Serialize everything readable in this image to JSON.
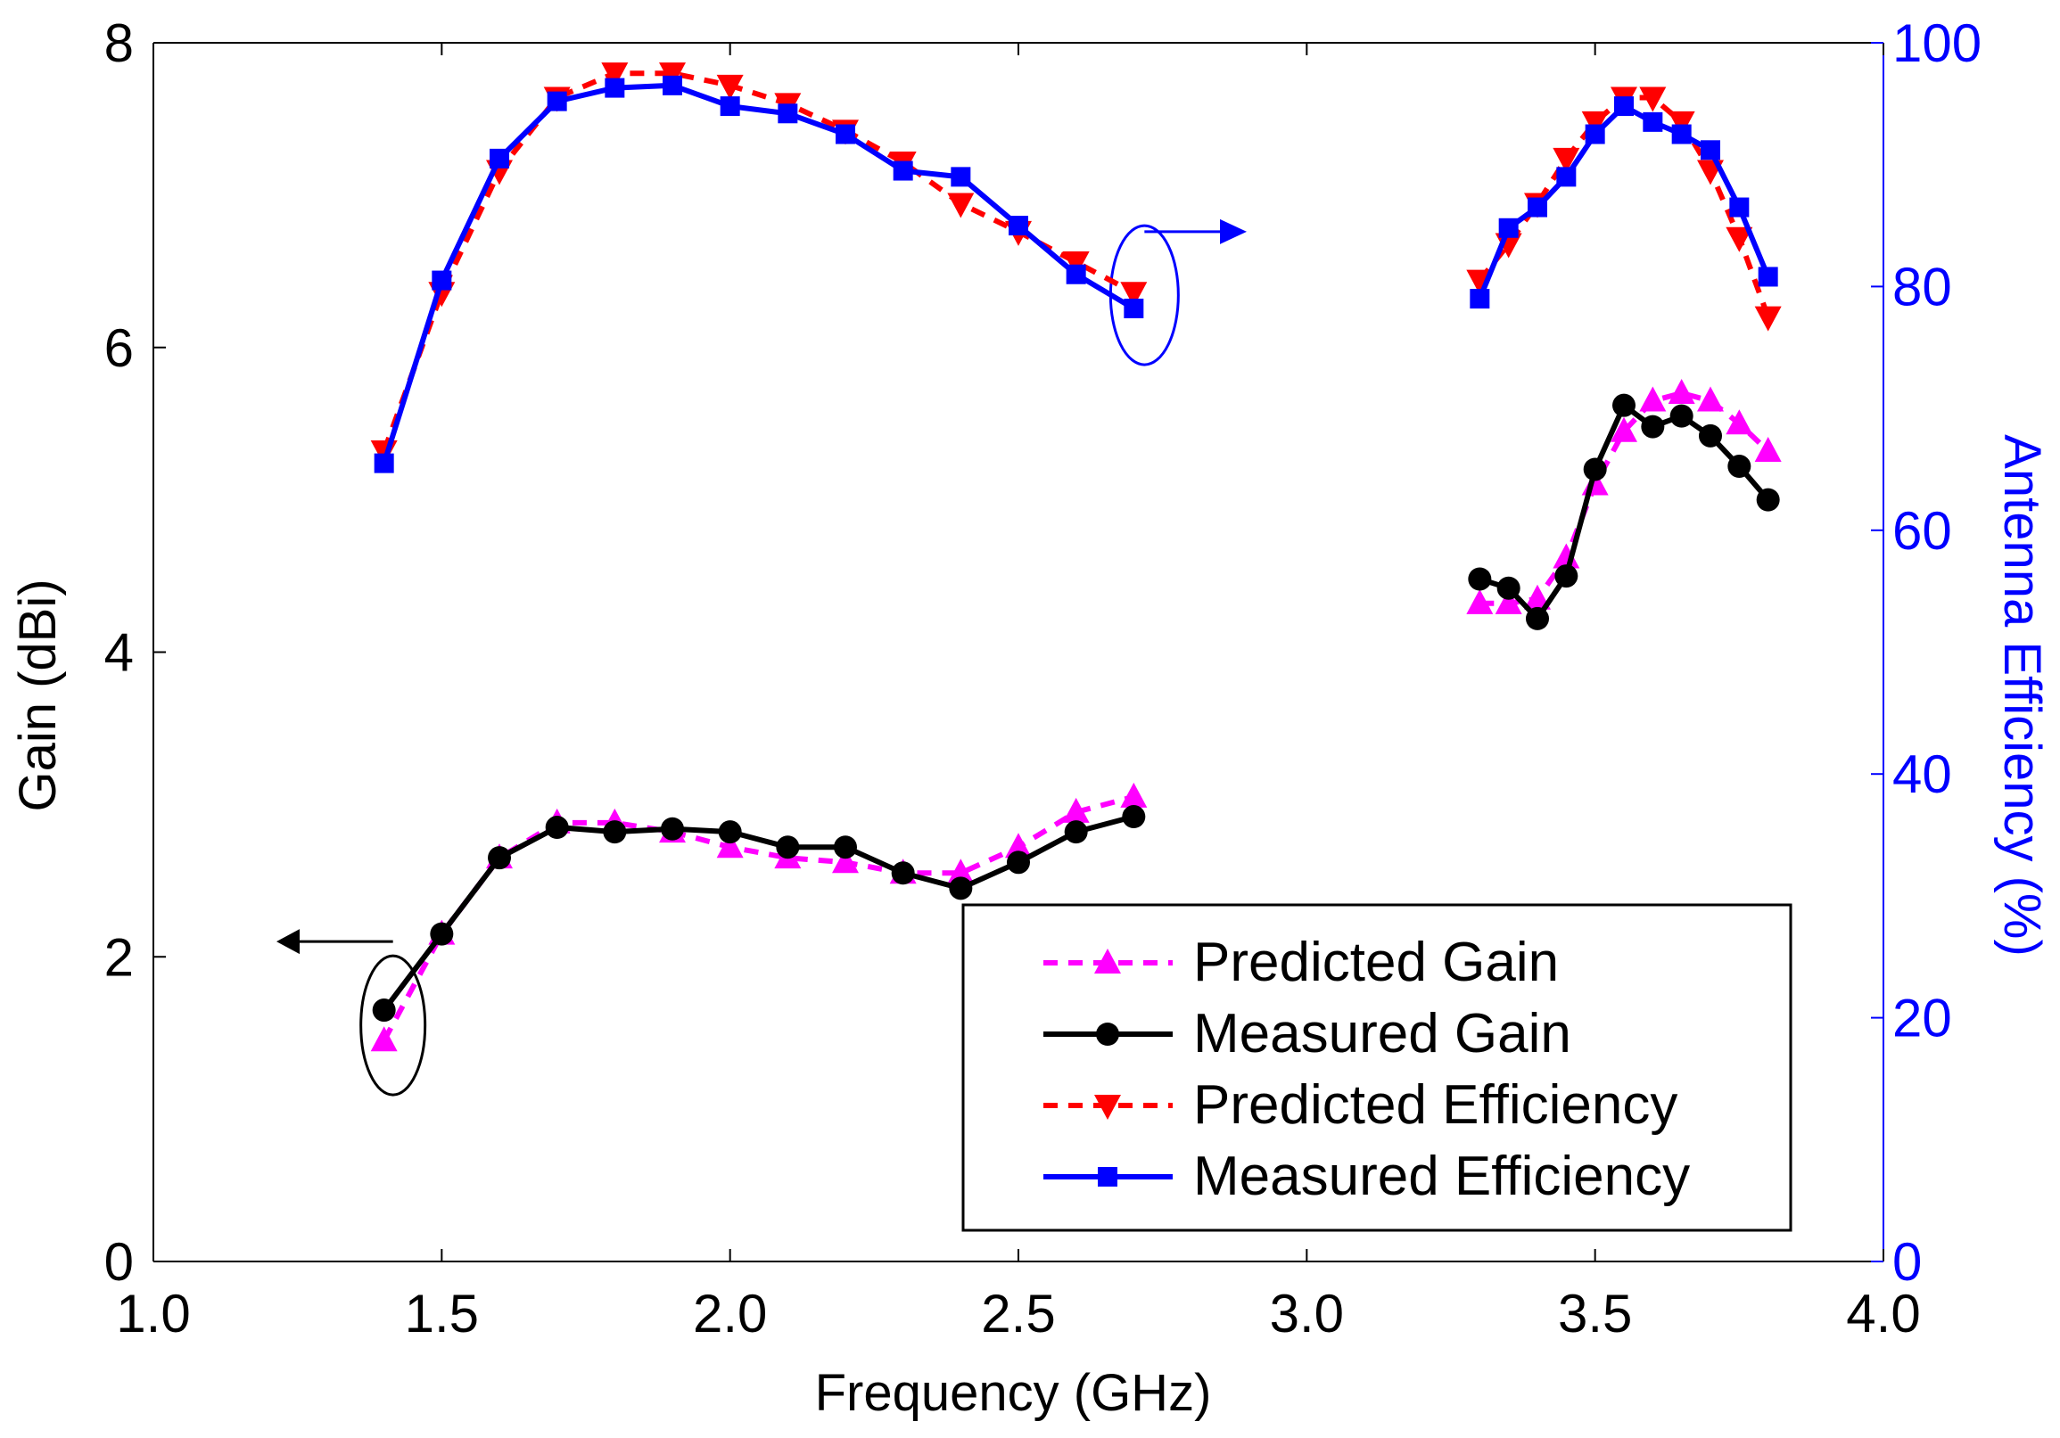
{
  "chart_data": {
    "type": "line",
    "xlabel": "Frequency (GHz)",
    "ylabel": "Gain (dBi)",
    "y2label": "Antenna Efficiency (%)",
    "xlim": [
      1.0,
      4.0
    ],
    "ylim": [
      0,
      8
    ],
    "y2lim": [
      0,
      100
    ],
    "x_ticks": [
      "1.0",
      "1.5",
      "2.0",
      "2.5",
      "3.0",
      "3.5",
      "4.0"
    ],
    "y_ticks": [
      "0",
      "2",
      "4",
      "6",
      "8"
    ],
    "y2_ticks": [
      "0",
      "20",
      "40",
      "60",
      "80",
      "100"
    ],
    "grid": false,
    "legend_position": "bottom-right",
    "colors": {
      "axis_left": "#000000",
      "axis_right": "#0000ff",
      "predicted_gain": "#ff00ff",
      "measured_gain": "#000000",
      "predicted_efficiency": "#ff0000",
      "measured_efficiency": "#0000ff"
    },
    "series": [
      {
        "name": "Predicted Gain",
        "axis": "left",
        "color": "#ff00ff",
        "dash": true,
        "marker": "triangle-up",
        "segments": [
          {
            "x": [
              1.4,
              1.5,
              1.6,
              1.7,
              1.8,
              1.9,
              2.0,
              2.1,
              2.2,
              2.3,
              2.4,
              2.5,
              2.6,
              2.7
            ],
            "y": [
              1.45,
              2.15,
              2.65,
              2.88,
              2.88,
              2.82,
              2.72,
              2.65,
              2.62,
              2.55,
              2.55,
              2.72,
              2.95,
              3.05
            ]
          },
          {
            "x": [
              3.3,
              3.35,
              3.4,
              3.45,
              3.5,
              3.55,
              3.6,
              3.65,
              3.7,
              3.75,
              3.8
            ],
            "y": [
              4.32,
              4.32,
              4.35,
              4.62,
              5.1,
              5.45,
              5.65,
              5.7,
              5.65,
              5.5,
              5.32
            ]
          }
        ]
      },
      {
        "name": "Measured Gain",
        "axis": "left",
        "color": "#000000",
        "dash": false,
        "marker": "circle",
        "segments": [
          {
            "x": [
              1.4,
              1.5,
              1.6,
              1.7,
              1.8,
              1.9,
              2.0,
              2.1,
              2.2,
              2.3,
              2.4,
              2.5,
              2.6,
              2.7
            ],
            "y": [
              1.65,
              2.15,
              2.65,
              2.85,
              2.82,
              2.84,
              2.82,
              2.72,
              2.72,
              2.55,
              2.45,
              2.62,
              2.82,
              2.92
            ]
          },
          {
            "x": [
              3.3,
              3.35,
              3.4,
              3.45,
              3.5,
              3.55,
              3.6,
              3.65,
              3.7,
              3.75,
              3.8
            ],
            "y": [
              4.48,
              4.42,
              4.22,
              4.5,
              5.2,
              5.62,
              5.48,
              5.55,
              5.42,
              5.22,
              5.0
            ]
          }
        ]
      },
      {
        "name": "Predicted Efficiency",
        "axis": "right",
        "color": "#ff0000",
        "dash": true,
        "marker": "triangle-down",
        "segments": [
          {
            "x": [
              1.4,
              1.5,
              1.6,
              1.7,
              1.8,
              1.9,
              2.0,
              2.1,
              2.2,
              2.3,
              2.4,
              2.5,
              2.6,
              2.7
            ],
            "y": [
              66.5,
              79.5,
              89.5,
              95.5,
              97.5,
              97.5,
              96.5,
              95,
              92.8,
              90.2,
              86.8,
              84.5,
              82,
              79.5
            ]
          },
          {
            "x": [
              3.3,
              3.35,
              3.4,
              3.45,
              3.5,
              3.55,
              3.6,
              3.65,
              3.7,
              3.75,
              3.8
            ],
            "y": [
              80.5,
              83.5,
              86.8,
              90.5,
              93.5,
              95.5,
              95.5,
              93.5,
              89.5,
              84,
              77.5
            ]
          }
        ]
      },
      {
        "name": "Measured Efficiency",
        "axis": "right",
        "color": "#0000ff",
        "dash": false,
        "marker": "square",
        "segments": [
          {
            "x": [
              1.4,
              1.5,
              1.6,
              1.7,
              1.8,
              1.9,
              2.0,
              2.1,
              2.2,
              2.3,
              2.4,
              2.5,
              2.6,
              2.7
            ],
            "y": [
              65.5,
              80.5,
              90.5,
              95.2,
              96.3,
              96.5,
              94.8,
              94.2,
              92.5,
              89.5,
              89,
              85,
              81,
              78.2
            ]
          },
          {
            "x": [
              3.3,
              3.35,
              3.4,
              3.45,
              3.5,
              3.55,
              3.6,
              3.65,
              3.7,
              3.75,
              3.8
            ],
            "y": [
              79,
              84.8,
              86.5,
              89,
              92.5,
              94.8,
              93.5,
              92.5,
              91.2,
              86.5,
              80.8
            ]
          }
        ]
      }
    ]
  }
}
